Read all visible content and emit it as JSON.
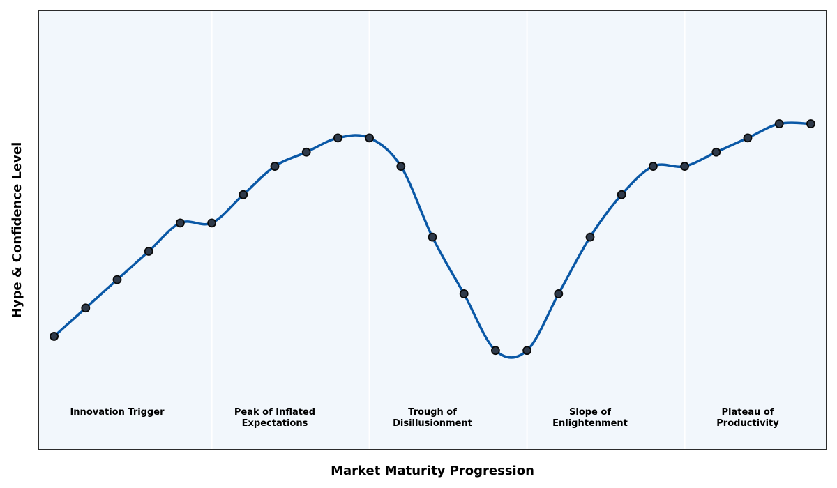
{
  "chart_data": {
    "type": "line",
    "title": "",
    "xlabel": "Market Maturity Progression",
    "ylabel": "Hype & Confidence Level",
    "grid": false,
    "series": [
      {
        "values": [
          28,
          38,
          48,
          58,
          68,
          68,
          78,
          88,
          93,
          98,
          98,
          88,
          63,
          43,
          23,
          23,
          43,
          63,
          78,
          88,
          88,
          93,
          98,
          103,
          103
        ]
      }
    ],
    "x": [
      1,
      2,
      3,
      4,
      5,
      6,
      7,
      8,
      9,
      10,
      11,
      12,
      13,
      14,
      15,
      16,
      17,
      18,
      19,
      20,
      21,
      22,
      23,
      24,
      25
    ],
    "xlim": [
      0.5,
      25.5
    ],
    "ylim": [
      -12,
      143
    ],
    "phases": [
      {
        "lines": [
          "Innovation Trigger"
        ],
        "x": 3,
        "span": [
          0.5,
          6
        ]
      },
      {
        "lines": [
          "Peak of Inflated",
          "Expectations"
        ],
        "x": 8,
        "span": [
          6,
          11
        ]
      },
      {
        "lines": [
          "Trough of",
          "Disillusionment"
        ],
        "x": 13,
        "span": [
          11,
          16
        ]
      },
      {
        "lines": [
          "Slope of",
          "Enlightenment"
        ],
        "x": 18,
        "span": [
          16,
          21
        ]
      },
      {
        "lines": [
          "Plateau of",
          "Productivity"
        ],
        "x": 23,
        "span": [
          21,
          25.5
        ]
      }
    ],
    "colors": {
      "line": "#0a58a6",
      "marker_fill": "#2f3a4a",
      "marker_edge": "#0a0a0a",
      "plot_bg": "#f2f7fc",
      "divider": "#ffffff",
      "frame": "#2b2b2b"
    }
  }
}
